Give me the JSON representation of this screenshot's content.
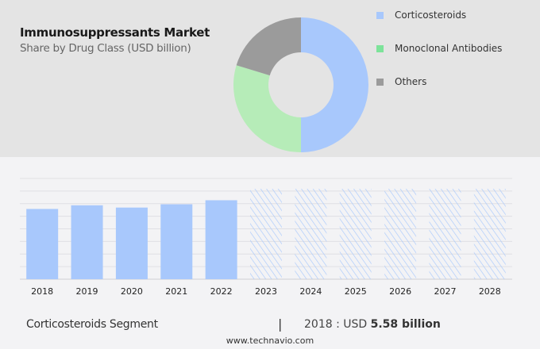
{
  "chart_data": [
    {
      "type": "pie",
      "variant": "donut",
      "title": "Immunosuppressants Market",
      "subtitle": "Share by Drug Class (USD billion)",
      "legend_placement": "right",
      "slices": [
        {
          "name": "Corticosteroids",
          "value": 50,
          "color": "#a8c8fc"
        },
        {
          "name": "Monoclonal Antibodies",
          "value": 29.7,
          "color": "#b6ecb8"
        },
        {
          "name": "Others",
          "value": 20.3,
          "color": "#9b9b9b"
        }
      ],
      "legend_colors": [
        "#a8c8fc",
        "#7de39a",
        "#9b9b9b"
      ]
    },
    {
      "type": "bar",
      "categories": [
        "2018",
        "2019",
        "2020",
        "2021",
        "2022",
        "2023",
        "2024",
        "2025",
        "2026",
        "2027",
        "2028"
      ],
      "values": [
        5.58,
        5.87,
        5.69,
        5.95,
        6.27,
        null,
        null,
        null,
        null,
        null,
        null
      ],
      "forecast_categories": [
        "2023",
        "2024",
        "2025",
        "2026",
        "2027",
        "2028"
      ],
      "forecast_style": "hatched",
      "ylim": [
        0,
        8
      ],
      "grid": true,
      "bar_color": "#a8c8fc"
    }
  ],
  "footer": {
    "segment": "Corticosteroids Segment",
    "separator": "|",
    "value_prefix": "2018 : USD",
    "value_bold": "5.58 billion",
    "source": "www.technavio.com"
  }
}
